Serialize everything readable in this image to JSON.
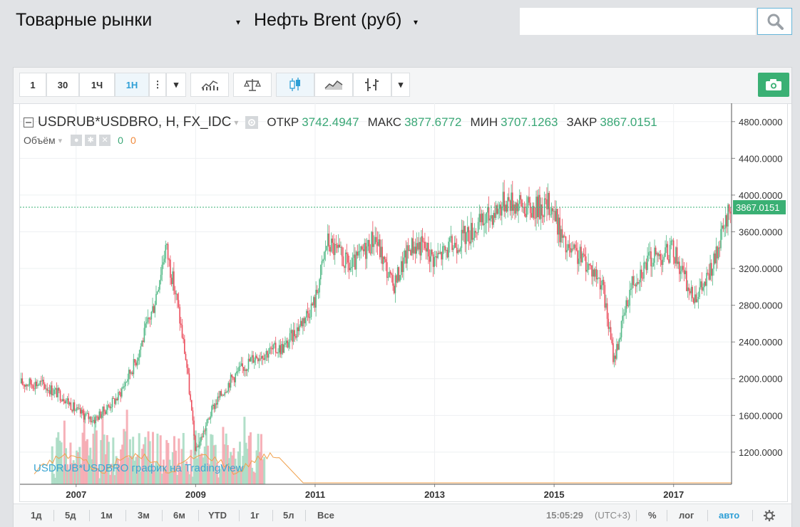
{
  "header": {
    "market_label": "Товарные рынки",
    "instrument_label": "Нефть Brent (руб)",
    "caret_glyph": "▾",
    "search": {
      "placeholder": "",
      "icon": "search-icon"
    }
  },
  "toolbar": {
    "intervals": [
      "1",
      "30",
      "1Ч",
      "1Н"
    ],
    "active_interval": "1Н",
    "more_glyph": "⋮",
    "dropdown_glyph": "▾",
    "tools": [
      "indicators-icon",
      "compare-icon",
      "candles-icon",
      "area-icon",
      "bars-icon"
    ],
    "camera_icon": "camera-icon"
  },
  "legend": {
    "symbol": "USDRUB*USDBRO, H, FX_IDC",
    "open_label": "ОТКР",
    "open": "3742.4947",
    "high_label": "МАКС",
    "high": "3877.6772",
    "low_label": "МИН",
    "low": "3707.1263",
    "close_label": "ЗАКР",
    "close": "3867.0151",
    "volume_label": "Объём",
    "volume_val1": "0",
    "volume_val2": "0"
  },
  "watermark": "USDRUB*USDBRO график на TradingView",
  "bottom": {
    "ranges": [
      "1д",
      "5д",
      "1м",
      "3м",
      "6м",
      "YTD",
      "1г",
      "5л",
      "Все"
    ],
    "time": "15:05:29",
    "timezone": "(UTC+3)",
    "percent": "%",
    "log": "лог",
    "auto": "авто"
  },
  "colors": {
    "up": "#53b987",
    "down": "#eb4d5c",
    "price_line": "#3ab074",
    "accent": "#2e9fd6"
  },
  "chart_data": {
    "type": "candlestick",
    "title": "",
    "ylabel": "",
    "xlabel": "",
    "ylim": [
      850,
      5000
    ],
    "yticks": [
      "1200.0000",
      "1600.0000",
      "2000.0000",
      "2400.0000",
      "2800.0000",
      "3200.0000",
      "3600.0000",
      "4000.0000",
      "4400.0000",
      "4800.0000"
    ],
    "xticks": [
      "2007",
      "2009",
      "2011",
      "2013",
      "2015",
      "2017"
    ],
    "last_price": 3867.0151,
    "x": [
      2006.4,
      2006.8,
      2007.0,
      2007.3,
      2007.7,
      2008.0,
      2008.3,
      2008.5,
      2008.7,
      2008.85,
      2009.0,
      2009.3,
      2009.6,
      2010.0,
      2010.5,
      2011.0,
      2011.2,
      2011.6,
      2012.0,
      2012.3,
      2012.6,
      2012.8,
      2013.0,
      2013.4,
      2013.8,
      2014.2,
      2014.6,
      2014.95,
      2015.2,
      2015.5,
      2015.8,
      2016.0,
      2016.3,
      2016.6,
      2017.0,
      2017.3,
      2017.5,
      2017.7,
      2017.95
    ],
    "close": [
      1950,
      1800,
      1650,
      1550,
      1800,
      2200,
      2800,
      3450,
      2800,
      2150,
      1200,
      1700,
      2000,
      2250,
      2350,
      2850,
      3500,
      3200,
      3550,
      3000,
      3450,
      3450,
      3300,
      3500,
      3700,
      3950,
      3850,
      3900,
      3400,
      3300,
      3050,
      2200,
      3050,
      3300,
      3400,
      2900,
      3000,
      3300,
      3867
    ]
  }
}
